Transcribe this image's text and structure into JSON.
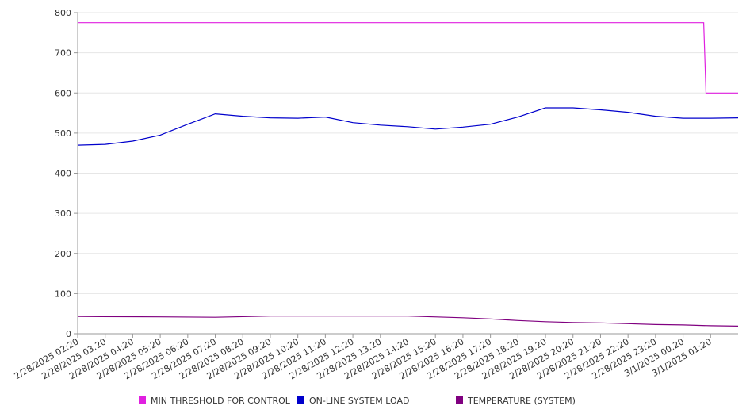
{
  "chart_data": {
    "type": "line",
    "title": "",
    "xlabel": "",
    "ylabel": "",
    "ylim": [
      0,
      800
    ],
    "yticks": [
      0,
      100,
      200,
      300,
      400,
      500,
      600,
      700,
      800
    ],
    "grid": "horizontal",
    "legend_position": "bottom",
    "x_start": "2/28/2025 02:20",
    "x_end": "3/1/2025 02:20",
    "x_ticks": [
      "2/28/2025 02:20",
      "2/28/2025 03:20",
      "2/28/2025 04:20",
      "2/28/2025 05:20",
      "2/28/2025 06:20",
      "2/28/2025 07:20",
      "2/28/2025 08:20",
      "2/28/2025 09:20",
      "2/28/2025 10:20",
      "2/28/2025 11:20",
      "2/28/2025 12:20",
      "2/28/2025 13:20",
      "2/28/2025 14:20",
      "2/28/2025 15:20",
      "2/28/2025 16:20",
      "2/28/2025 17:20",
      "2/28/2025 18:20",
      "2/28/2025 19:20",
      "2/28/2025 20:20",
      "2/28/2025 21:20",
      "2/28/2025 22:20",
      "2/28/2025 23:20",
      "3/1/2025 00:20",
      "3/1/2025 01:20"
    ],
    "series": [
      {
        "name": "MIN THRESHOLD FOR CONTROL",
        "color": "#e020e0",
        "points": [
          [
            "2/28/2025 02:20",
            775
          ],
          [
            "3/1/2025 01:05",
            775
          ],
          [
            "3/1/2025 01:10",
            600
          ],
          [
            "3/1/2025 02:20",
            600
          ]
        ]
      },
      {
        "name": "ON-LINE SYSTEM LOAD",
        "color": "#0000cc",
        "points": [
          [
            "2/28/2025 02:20",
            470
          ],
          [
            "2/28/2025 03:20",
            472
          ],
          [
            "2/28/2025 04:20",
            480
          ],
          [
            "2/28/2025 05:20",
            495
          ],
          [
            "2/28/2025 06:20",
            522
          ],
          [
            "2/28/2025 07:20",
            548
          ],
          [
            "2/28/2025 08:20",
            542
          ],
          [
            "2/28/2025 09:20",
            538
          ],
          [
            "2/28/2025 10:20",
            537
          ],
          [
            "2/28/2025 11:20",
            540
          ],
          [
            "2/28/2025 12:20",
            526
          ],
          [
            "2/28/2025 13:20",
            520
          ],
          [
            "2/28/2025 14:20",
            516
          ],
          [
            "2/28/2025 15:20",
            510
          ],
          [
            "2/28/2025 16:20",
            515
          ],
          [
            "2/28/2025 17:20",
            522
          ],
          [
            "2/28/2025 18:20",
            540
          ],
          [
            "2/28/2025 19:20",
            563
          ],
          [
            "2/28/2025 20:20",
            563
          ],
          [
            "2/28/2025 21:20",
            558
          ],
          [
            "2/28/2025 22:20",
            552
          ],
          [
            "2/28/2025 23:20",
            542
          ],
          [
            "3/1/2025 00:20",
            537
          ],
          [
            "3/1/2025 01:20",
            537
          ],
          [
            "3/1/2025 02:20",
            538
          ]
        ]
      },
      {
        "name": "TEMPERATURE (SYSTEM)",
        "color": "#800080",
        "points": [
          [
            "2/28/2025 02:20",
            43
          ],
          [
            "2/28/2025 05:20",
            42
          ],
          [
            "2/28/2025 07:20",
            41
          ],
          [
            "2/28/2025 09:20",
            44
          ],
          [
            "2/28/2025 14:20",
            44
          ],
          [
            "2/28/2025 16:20",
            40
          ],
          [
            "2/28/2025 17:20",
            37
          ],
          [
            "2/28/2025 18:20",
            33
          ],
          [
            "2/28/2025 19:20",
            30
          ],
          [
            "2/28/2025 20:20",
            28
          ],
          [
            "2/28/2025 21:20",
            27
          ],
          [
            "2/28/2025 22:20",
            25
          ],
          [
            "2/28/2025 23:20",
            23
          ],
          [
            "3/1/2025 00:20",
            22
          ],
          [
            "3/1/2025 01:20",
            20
          ],
          [
            "3/1/2025 02:20",
            19
          ]
        ]
      }
    ]
  }
}
